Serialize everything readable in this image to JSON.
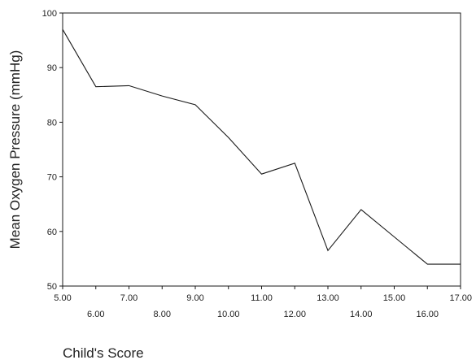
{
  "chart_data": {
    "type": "line",
    "title": "",
    "xlabel": "Child's Score",
    "ylabel": "Mean Oxygen Pressure (mmHg)",
    "xlim": [
      5,
      17
    ],
    "ylim": [
      50,
      100
    ],
    "x_ticks": [
      5,
      6,
      7,
      8,
      9,
      10,
      11,
      12,
      13,
      14,
      15,
      16,
      17
    ],
    "x_tick_labels": [
      "5.00",
      "6.00",
      "7.00",
      "8.00",
      "9.00",
      "10.00",
      "11.00",
      "12.00",
      "13.00",
      "14.00",
      "15.00",
      "16.00",
      "17.00"
    ],
    "y_ticks": [
      50,
      60,
      70,
      80,
      90,
      100
    ],
    "y_tick_labels": [
      "50",
      "60",
      "70",
      "80",
      "90",
      "100"
    ],
    "series": [
      {
        "x": [
          5,
          6,
          7,
          8,
          9,
          10,
          11,
          12,
          13,
          14,
          15,
          16,
          17
        ],
        "y": [
          97.0,
          86.5,
          86.7,
          84.8,
          83.2,
          77.2,
          70.5,
          72.5,
          56.5,
          64.0,
          59.0,
          54.0,
          54.0
        ],
        "color": "#1a1a1a"
      }
    ],
    "grid": false,
    "legend": "none",
    "colors": {
      "line": "#1a1a1a",
      "axes": "#1a1a1a"
    }
  }
}
